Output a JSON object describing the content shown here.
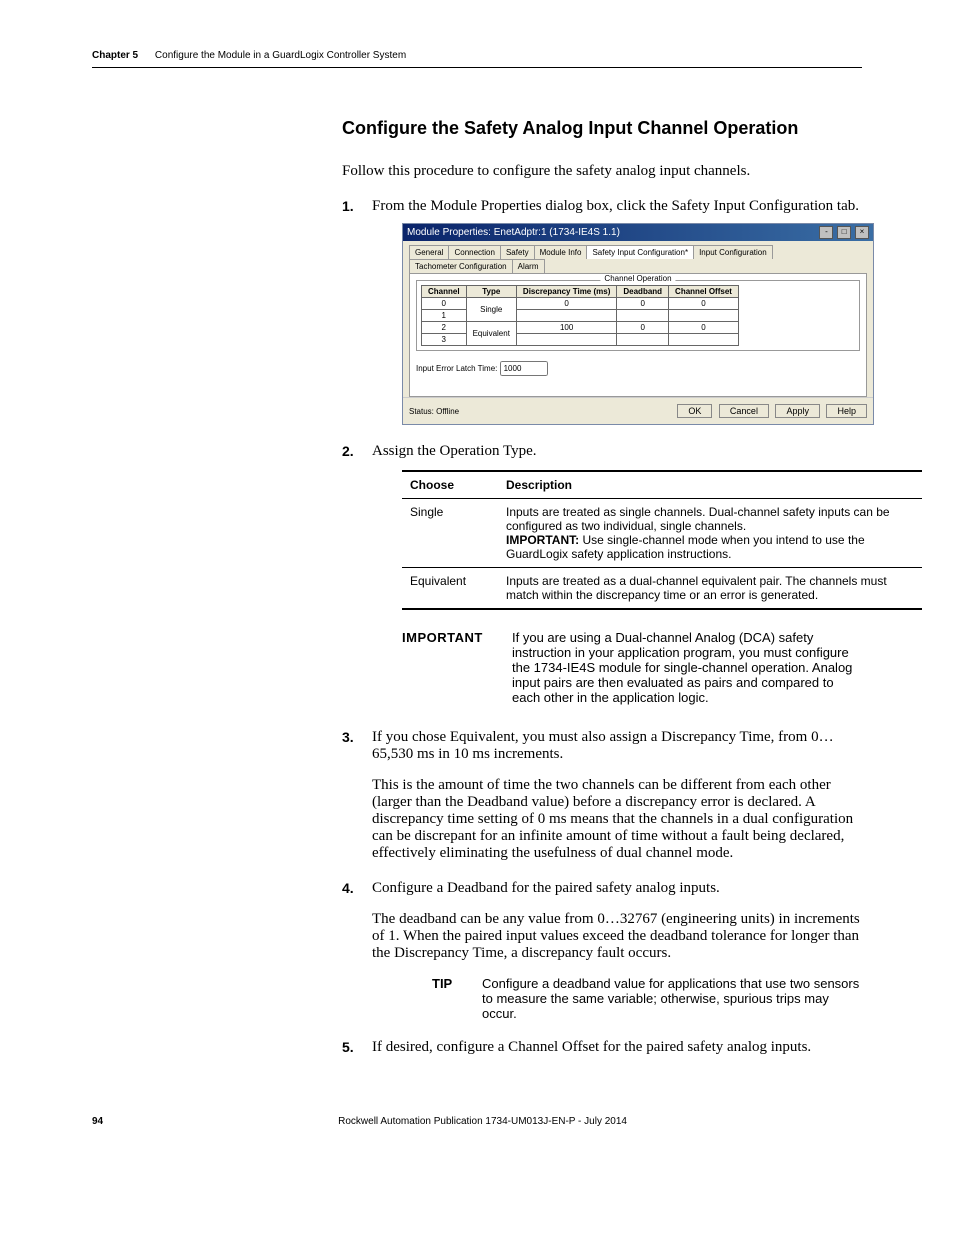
{
  "runningHead": {
    "chapter": "Chapter 5",
    "title": "Configure the Module in a GuardLogix Controller System"
  },
  "sectionTitle": "Configure the Safety Analog Input Channel Operation",
  "lead": "Follow this procedure to configure the safety analog input channels.",
  "steps": {
    "s1": "From the Module Properties dialog box, click the Safety Input Configuration tab.",
    "s2": "Assign the Operation Type.",
    "s3": "If you chose Equivalent, you must also assign a Discrepancy Time, from 0…65,530 ms in 10 ms increments.",
    "s3_body": "This is the amount of time the two channels can be different from each other (larger than the Deadband value) before a discrepancy error is declared. A discrepancy time setting of 0 ms means that the channels in a dual configuration can be discrepant for an infinite amount of time without a fault being declared, effectively eliminating the usefulness of dual channel mode.",
    "s4": "Configure a Deadband for the paired safety analog inputs.",
    "s4_body": "The deadband can be any value from 0…32767 (engineering units) in increments of 1. When the paired input values exceed the deadband tolerance for longer than the Discrepancy Time, a discrepancy fault occurs.",
    "s5": "If desired, configure a Channel Offset for the paired safety analog inputs."
  },
  "screenshot": {
    "title": "Module Properties: EnetAdptr:1 (1734-IE4S 1.1)",
    "tabs": [
      "General",
      "Connection",
      "Safety",
      "Module Info",
      "Safety Input Configuration*",
      "Input Configuration",
      "Tachometer Configuration",
      "Alarm"
    ],
    "activeTab": 4,
    "chopTitle": "Channel Operation",
    "columns": [
      "Channel",
      "Type",
      "Discrepancy Time (ms)",
      "Deadband",
      "Channel Offset"
    ],
    "rows": [
      {
        "ch": "0",
        "type": "Single",
        "disc": "0",
        "db": "0",
        "off": "0"
      },
      {
        "ch": "1",
        "type": "",
        "disc": "",
        "db": "",
        "off": ""
      },
      {
        "ch": "2",
        "type": "Equivalent",
        "disc": "100",
        "db": "0",
        "off": "0"
      },
      {
        "ch": "3",
        "type": "",
        "disc": "",
        "db": "",
        "off": ""
      }
    ],
    "latchLabel": "Input Error Latch Time:",
    "latchValue": "1000",
    "status": "Status: Offline",
    "buttons": [
      "OK",
      "Cancel",
      "Apply",
      "Help"
    ]
  },
  "chooseTable": {
    "headers": [
      "Choose",
      "Description"
    ],
    "rows": [
      {
        "choose": "Single",
        "desc_line1": "Inputs are treated as single channels. Dual-channel safety inputs can be configured as two individual, single channels.",
        "important_label": "IMPORTANT:",
        "important_text": " Use single-channel mode when you intend to use the GuardLogix safety application instructions."
      },
      {
        "choose": "Equivalent",
        "desc": "Inputs are treated as a dual-channel equivalent pair. The channels must match within the discrepancy time or an error is generated."
      }
    ]
  },
  "importantBlock": {
    "label": "IMPORTANT",
    "text": "If you are using a Dual-channel Analog (DCA) safety instruction in your application program, you must configure the 1734-IE4S module for single-channel operation. Analog input pairs are then evaluated as pairs and compared to each other in the application logic."
  },
  "tipBlock": {
    "label": "TIP",
    "text": "Configure a deadband value for applications that use two sensors to measure the same variable; otherwise, spurious trips may occur."
  },
  "footer": {
    "pageNum": "94",
    "publication": "Rockwell Automation Publication 1734-UM013J-EN-P - July 2014"
  }
}
